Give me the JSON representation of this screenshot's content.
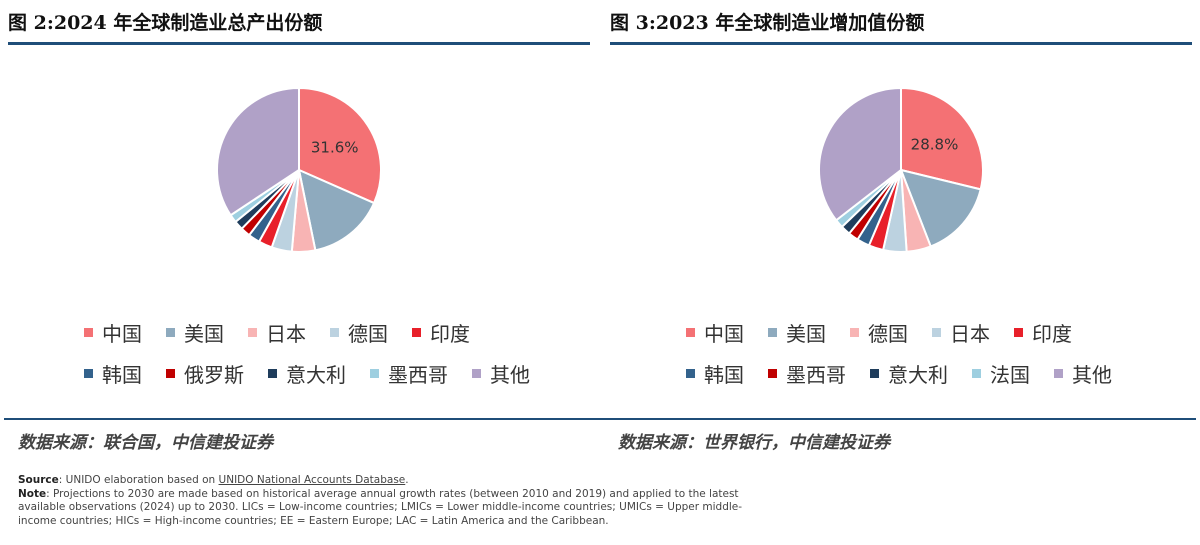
{
  "chart_data": [
    {
      "type": "pie",
      "title": "图 2:2024 年全球制造业总产出份额",
      "slices": [
        {
          "label": "中国",
          "value": 31.6,
          "color": "#f47174"
        },
        {
          "label": "美国",
          "value": 15.2,
          "color": "#8eaabe"
        },
        {
          "label": "日本",
          "value": 4.6,
          "color": "#f8b4b4"
        },
        {
          "label": "德国",
          "value": 4.0,
          "color": "#bcd2e0"
        },
        {
          "label": "印度",
          "value": 2.7,
          "color": "#e8202a"
        },
        {
          "label": "韩国",
          "value": 2.3,
          "color": "#33628c"
        },
        {
          "label": "俄罗斯",
          "value": 1.9,
          "color": "#c00000"
        },
        {
          "label": "意大利",
          "value": 1.8,
          "color": "#1f3d5c"
        },
        {
          "label": "墨西哥",
          "value": 1.6,
          "color": "#9ecfe0"
        },
        {
          "label": "其他",
          "value": 34.3,
          "color": "#b0a1c7"
        }
      ],
      "data_labels": [
        "31.6%"
      ],
      "legend_rows": [
        [
          "中国",
          "美国",
          "日本",
          "德国",
          "印度"
        ],
        [
          "韩国",
          "俄罗斯",
          "意大利",
          "墨西哥",
          "其他"
        ]
      ],
      "legend_position": "bottom",
      "source": "数据来源：联合国，中信建投证券"
    },
    {
      "type": "pie",
      "title": "图 3:2023 年全球制造业增加值份额",
      "slices": [
        {
          "label": "中国",
          "value": 28.8,
          "color": "#f47174"
        },
        {
          "label": "美国",
          "value": 15.3,
          "color": "#8eaabe"
        },
        {
          "label": "德国",
          "value": 4.8,
          "color": "#f8b4b4"
        },
        {
          "label": "日本",
          "value": 4.6,
          "color": "#bcd2e0"
        },
        {
          "label": "印度",
          "value": 2.9,
          "color": "#e8202a"
        },
        {
          "label": "韩国",
          "value": 2.5,
          "color": "#33628c"
        },
        {
          "label": "墨西哥",
          "value": 2.0,
          "color": "#c00000"
        },
        {
          "label": "意大利",
          "value": 1.9,
          "color": "#1f3d5c"
        },
        {
          "label": "法国",
          "value": 1.7,
          "color": "#9ecfe0"
        },
        {
          "label": "其他",
          "value": 35.5,
          "color": "#b0a1c7"
        }
      ],
      "data_labels": [
        "28.8%"
      ],
      "legend_rows": [
        [
          "中国",
          "美国",
          "德国",
          "日本",
          "印度"
        ],
        [
          "韩国",
          "墨西哥",
          "意大利",
          "法国",
          "其他"
        ]
      ],
      "legend_position": "bottom",
      "source": "数据来源：世界银行，中信建投证券"
    }
  ],
  "footnote": {
    "source_label": "Source",
    "source_text_a": ": UNIDO elaboration based on ",
    "source_link": "UNIDO National Accounts Database",
    "source_text_b": ".",
    "note_label": "Note",
    "note_text": ": Projections to 2030 are made based on historical average annual growth rates (between 2010 and 2019) and applied to the latest available observations (2024) up to 2030. LICs = Low-income countries; LMICs = Lower middle-income countries; UMICs = Upper middle-income countries; HICs = High-income countries; EE = Eastern Europe; LAC = Latin America and the Caribbean."
  }
}
